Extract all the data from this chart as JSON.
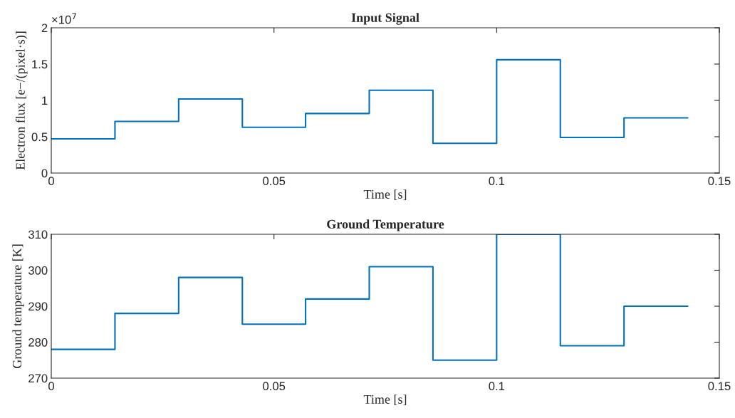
{
  "chart_data": [
    {
      "type": "step",
      "title": "Input Signal",
      "xlabel": "Time [s]",
      "ylabel": "Electron flux [e−/(pixel·s)]",
      "x": [
        0,
        0.0143,
        0.0286,
        0.0429,
        0.0571,
        0.0714,
        0.0857,
        0.1,
        0.1143,
        0.1286,
        0.1429
      ],
      "series": [
        {
          "color": "#0072bd",
          "values": [
            0.47,
            0.71,
            1.02,
            0.63,
            0.82,
            1.14,
            0.41,
            1.56,
            0.49,
            0.76,
            0.76
          ]
        }
      ],
      "xlim": [
        0,
        0.15
      ],
      "xticks": [
        0,
        0.05,
        0.1,
        0.15
      ],
      "ylim": [
        0,
        2
      ],
      "yticks": [
        0,
        0.5,
        1,
        1.5,
        2
      ],
      "annotations": [
        "×10$^{7}$"
      ],
      "grid": false,
      "legend": false
    },
    {
      "type": "step",
      "title": "Ground Temperature",
      "xlabel": "Time [s]",
      "ylabel": "Ground temperature [K]",
      "x": [
        0,
        0.0143,
        0.0286,
        0.0429,
        0.0571,
        0.0714,
        0.0857,
        0.1,
        0.1143,
        0.1286,
        0.1429
      ],
      "series": [
        {
          "color": "#0072bd",
          "values": [
            278,
            288,
            298,
            285,
            292,
            301,
            275,
            310,
            279,
            290,
            290
          ]
        }
      ],
      "xlim": [
        0,
        0.15
      ],
      "xticks": [
        0,
        0.05,
        0.1,
        0.15
      ],
      "ylim": [
        270,
        310
      ],
      "yticks": [
        270,
        280,
        290,
        300,
        310
      ],
      "grid": false,
      "legend": false
    }
  ]
}
